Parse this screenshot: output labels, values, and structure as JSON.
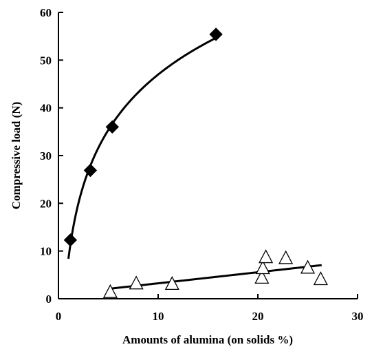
{
  "chart_data": {
    "type": "scatter",
    "xlabel": "Amounts of alumina (on solids %)",
    "ylabel": "Compressive load (N)",
    "xlim": [
      0,
      30
    ],
    "ylim": [
      0,
      60
    ],
    "x_ticks": [
      0,
      10,
      20,
      30
    ],
    "y_ticks": [
      0,
      10,
      20,
      30,
      40,
      50,
      60
    ],
    "x_tick_labels": [
      "0",
      "10",
      "20",
      "30"
    ],
    "y_tick_labels": [
      "0",
      "10",
      "20",
      "30",
      "40",
      "50",
      "60"
    ],
    "grid": false,
    "legend": "none",
    "series": [
      {
        "marker": "filled-diamond",
        "color": "#000000",
        "points": [
          {
            "x": 1.2,
            "y": 12.3
          },
          {
            "x": 3.2,
            "y": 26.9
          },
          {
            "x": 5.4,
            "y": 36.0
          },
          {
            "x": 15.8,
            "y": 55.4
          }
        ],
        "fit": {
          "type": "logarithmic",
          "x_range": [
            1.0,
            15.8
          ]
        }
      },
      {
        "marker": "open-triangle",
        "color": "#000000",
        "points": [
          {
            "x": 5.2,
            "y": 1.3
          },
          {
            "x": 7.8,
            "y": 3.1
          },
          {
            "x": 11.4,
            "y": 3.0
          },
          {
            "x": 20.4,
            "y": 4.3
          },
          {
            "x": 20.5,
            "y": 6.3
          },
          {
            "x": 20.8,
            "y": 8.6
          },
          {
            "x": 22.8,
            "y": 8.4
          },
          {
            "x": 25.0,
            "y": 6.4
          },
          {
            "x": 26.3,
            "y": 4.0
          }
        ],
        "fit": {
          "type": "linear",
          "x_range": [
            5.0,
            26.4
          ]
        }
      }
    ]
  }
}
